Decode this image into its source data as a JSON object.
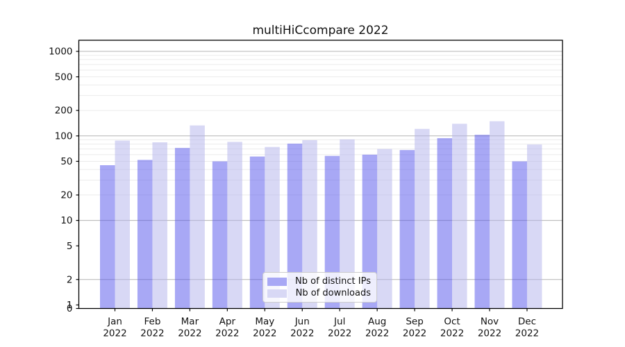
{
  "chart_data": {
    "type": "bar",
    "title": "multiHiCcompare 2022",
    "categories": [
      "Jan",
      "Feb",
      "Mar",
      "Apr",
      "May",
      "Jun",
      "Jul",
      "Aug",
      "Sep",
      "Oct",
      "Nov",
      "Dec"
    ],
    "year_label": "2022",
    "series": [
      {
        "name": "Nb of distinct IPs",
        "color": "#a8a8f5",
        "values": [
          45,
          52,
          72,
          50,
          57,
          81,
          58,
          60,
          68,
          94,
          103,
          50
        ]
      },
      {
        "name": "Nb of downloads",
        "color": "#d8d8f5",
        "values": [
          88,
          84,
          133,
          85,
          74,
          89,
          91,
          70,
          121,
          139,
          149,
          79
        ]
      }
    ],
    "yscale": "log",
    "yticks": [
      1000,
      500,
      200,
      100,
      50,
      20,
      10,
      5,
      2,
      1,
      0
    ],
    "ylim": [
      0,
      1360
    ],
    "grid": true,
    "legend_position": "lower center",
    "axis_color": "#000000",
    "major_grid_color": "#b3b3b3",
    "minor_grid_color": "#ebebeb"
  }
}
